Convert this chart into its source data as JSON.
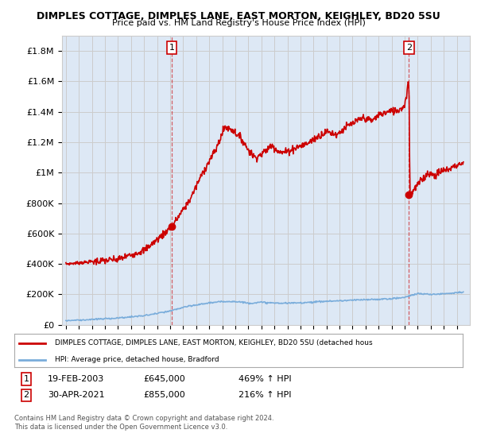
{
  "title": "DIMPLES COTTAGE, DIMPLES LANE, EAST MORTON, KEIGHLEY, BD20 5SU",
  "subtitle": "Price paid vs. HM Land Registry's House Price Index (HPI)",
  "legend_line1": "DIMPLES COTTAGE, DIMPLES LANE, EAST MORTON, KEIGHLEY, BD20 5SU (detached hous",
  "legend_line2": "HPI: Average price, detached house, Bradford",
  "footer1": "Contains HM Land Registry data © Crown copyright and database right 2024.",
  "footer2": "This data is licensed under the Open Government Licence v3.0.",
  "point1_date": "19-FEB-2003",
  "point1_price": "£645,000",
  "point1_hpi": "469% ↑ HPI",
  "point2_date": "30-APR-2021",
  "point2_price": "£855,000",
  "point2_hpi": "216% ↑ HPI",
  "ylim": [
    0,
    1900000
  ],
  "yticks": [
    0,
    200000,
    400000,
    600000,
    800000,
    1000000,
    1200000,
    1400000,
    1600000,
    1800000
  ],
  "ytick_labels": [
    "£0",
    "£200K",
    "£400K",
    "£600K",
    "£800K",
    "£1M",
    "£1.2M",
    "£1.4M",
    "£1.6M",
    "£1.8M"
  ],
  "red_color": "#cc0000",
  "blue_color": "#7aaddb",
  "grid_color": "#cccccc",
  "bg_color": "#ffffff",
  "plot_bg_color": "#dde8f5",
  "point1_x": 2003.12,
  "point1_y": 645000,
  "point2_x": 2021.33,
  "point2_y": 855000,
  "xmin": 1995,
  "xmax": 2026
}
